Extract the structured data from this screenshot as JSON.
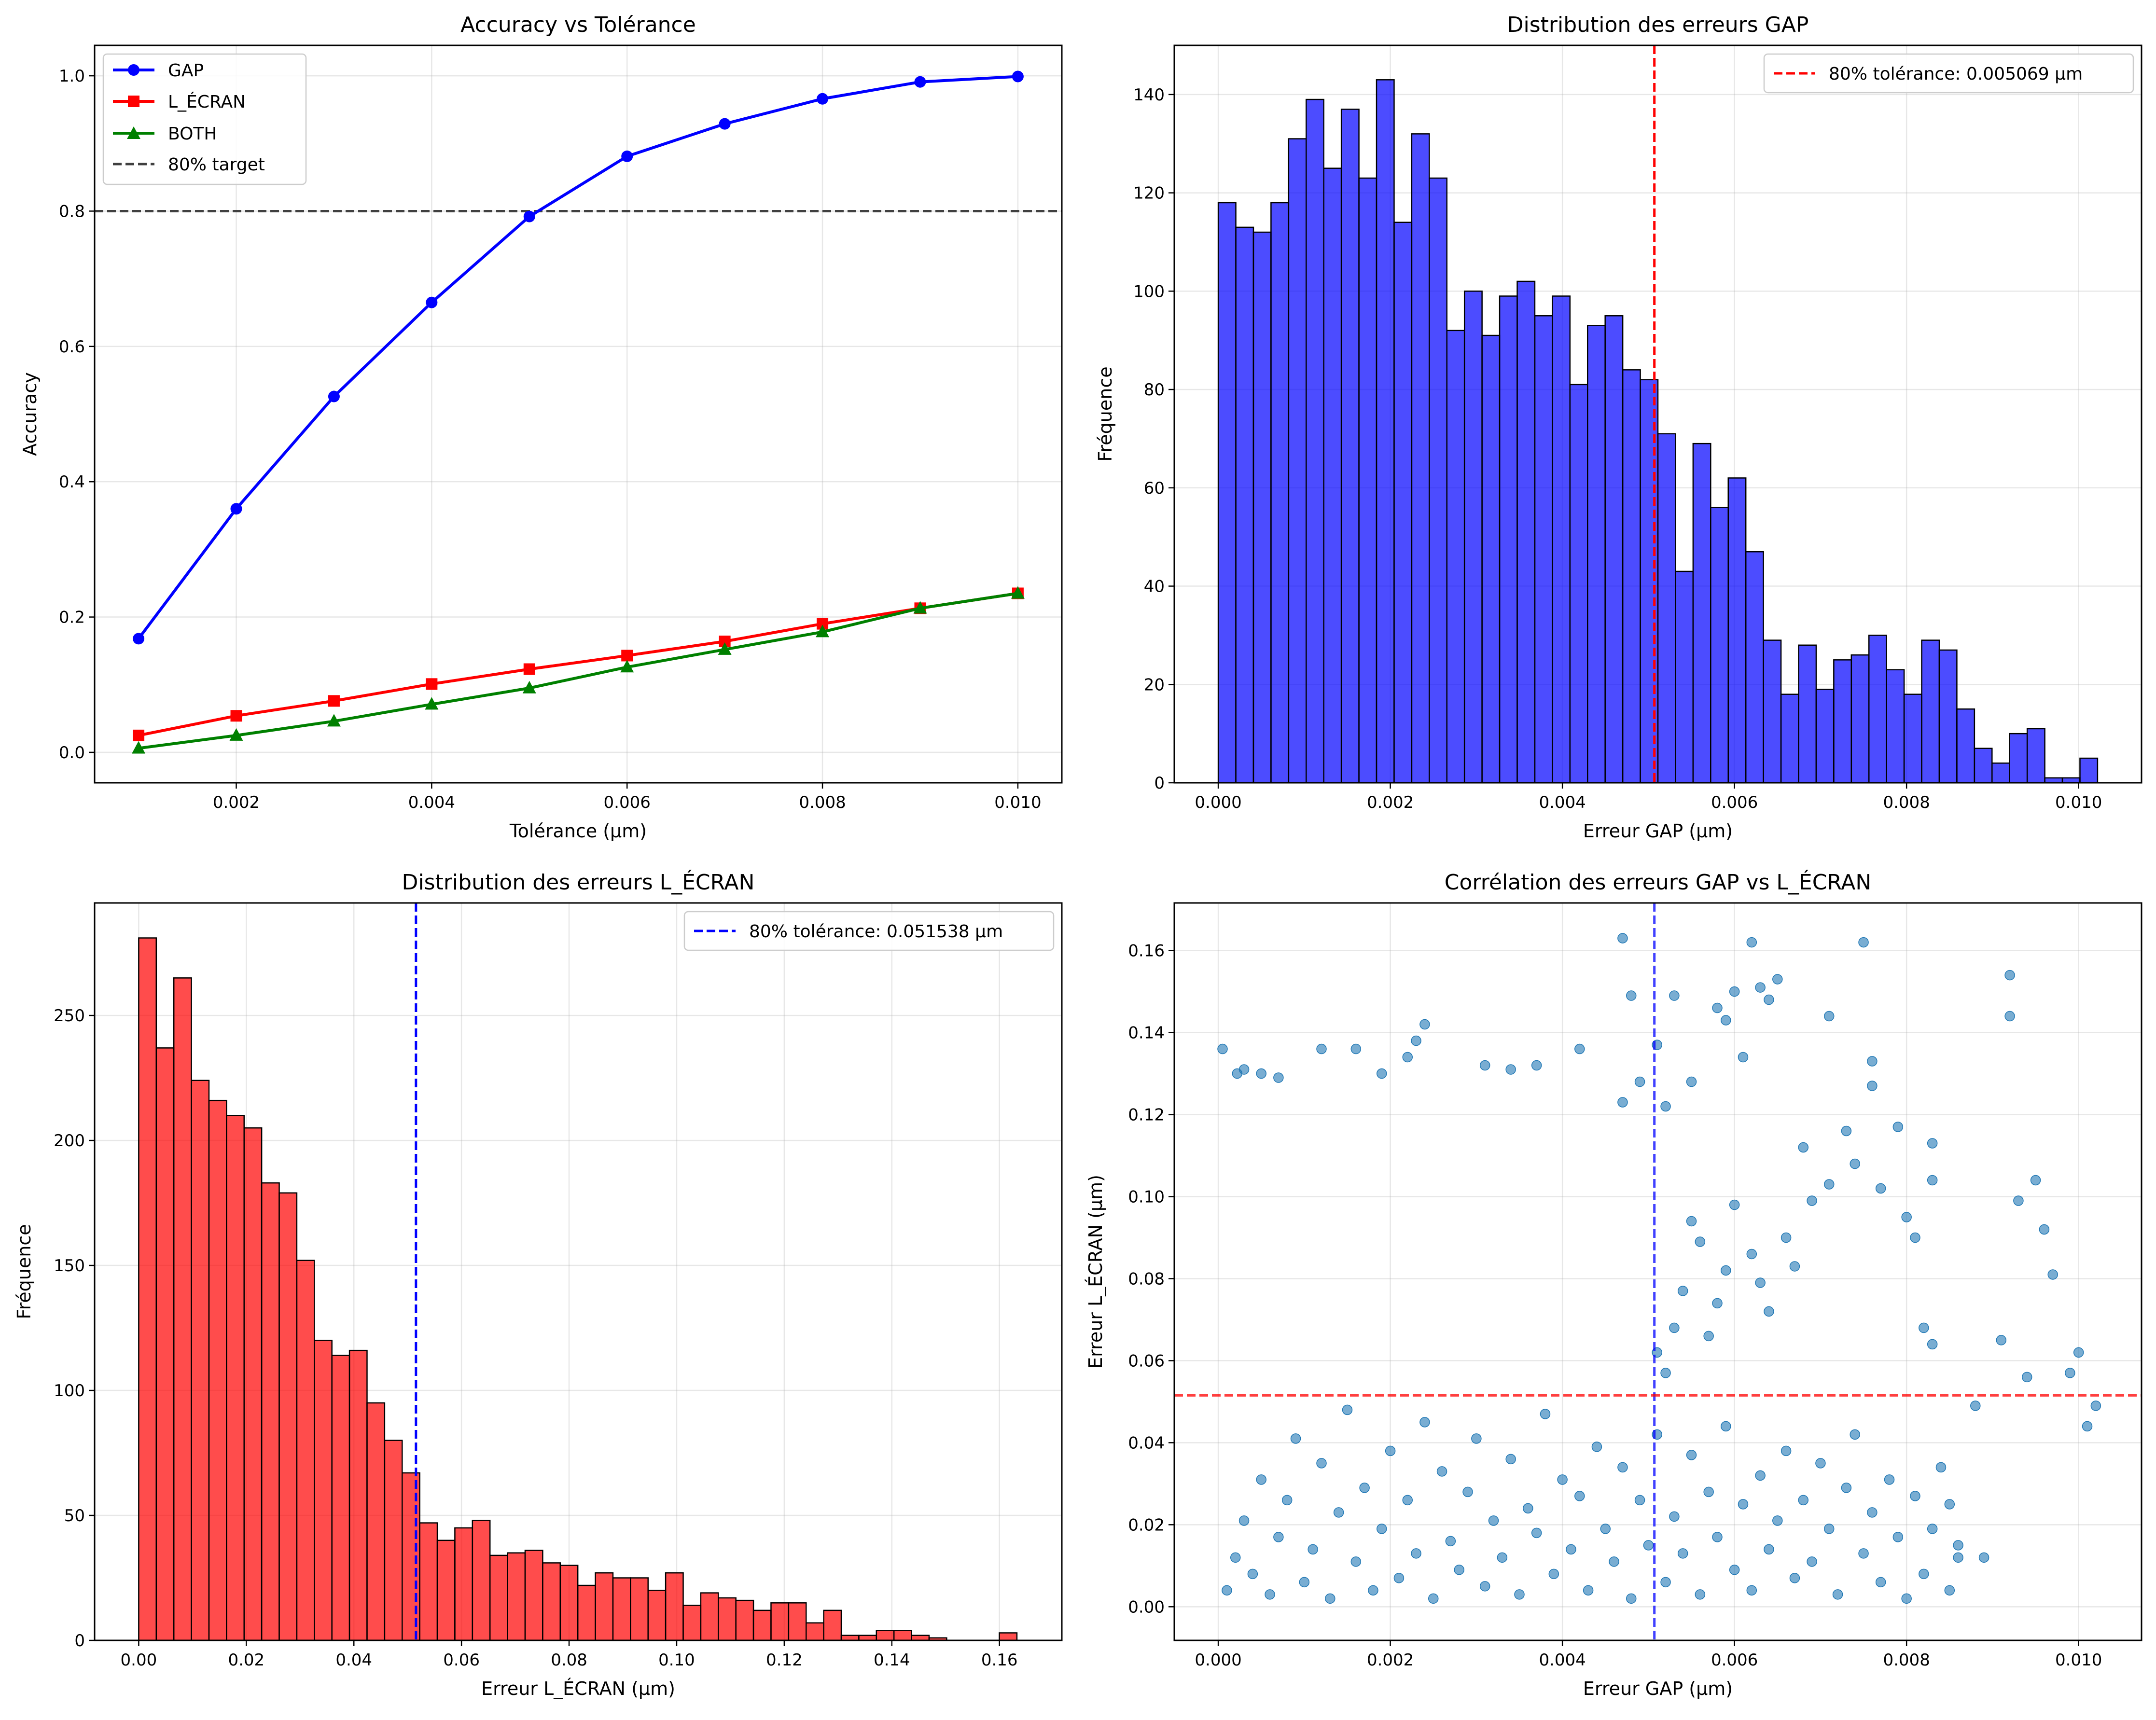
{
  "chart_data": [
    {
      "type": "line",
      "title": "Accuracy vs Tolérance",
      "xlabel": "Tolérance (µm)",
      "ylabel": "Accuracy",
      "xlim": [
        0.00055,
        0.01045
      ],
      "ylim": [
        -0.045,
        1.045
      ],
      "xticks": [
        "0.002",
        "0.004",
        "0.006",
        "0.008",
        "0.010"
      ],
      "xtick_values": [
        0.002,
        0.004,
        0.006,
        0.008,
        0.01
      ],
      "yticks": [
        "0.0",
        "0.2",
        "0.4",
        "0.6",
        "0.8",
        "1.0"
      ],
      "ytick_values": [
        0,
        0.2,
        0.4,
        0.6,
        0.8,
        1.0
      ],
      "grid": true,
      "legend_position": "top-left",
      "x": [
        0.001,
        0.002,
        0.003,
        0.004,
        0.005,
        0.006,
        0.007,
        0.008,
        0.009,
        0.01
      ],
      "series": [
        {
          "name": "GAP",
          "color": "#0000ff",
          "marker": "circle",
          "values": [
            0.168,
            0.36,
            0.526,
            0.665,
            0.792,
            0.881,
            0.929,
            0.966,
            0.991,
            0.999
          ]
        },
        {
          "name": "L_ÉCRAN",
          "color": "#ff0000",
          "marker": "square",
          "values": [
            0.025,
            0.054,
            0.076,
            0.101,
            0.123,
            0.143,
            0.164,
            0.19,
            0.213,
            0.235
          ]
        },
        {
          "name": "BOTH",
          "color": "#008000",
          "marker": "triangle",
          "values": [
            0.006,
            0.025,
            0.046,
            0.071,
            0.095,
            0.126,
            0.152,
            0.178,
            0.213,
            0.235
          ]
        }
      ],
      "reference_line": {
        "name": "80% target",
        "y": 0.8,
        "color": "#404040",
        "style": "dashed"
      }
    },
    {
      "type": "bar",
      "subtype": "histogram",
      "title": "Distribution des erreurs GAP",
      "xlabel": "Erreur GAP (µm)",
      "ylabel": "Fréquence",
      "xlim": [
        -0.000511,
        0.010731
      ],
      "ylim": [
        0,
        150
      ],
      "xticks": [
        "0.000",
        "0.002",
        "0.004",
        "0.006",
        "0.008",
        "0.010"
      ],
      "xtick_values": [
        0,
        0.002,
        0.004,
        0.006,
        0.008,
        0.01
      ],
      "yticks": [
        "0",
        "20",
        "40",
        "60",
        "80",
        "100",
        "120",
        "140"
      ],
      "ytick_values": [
        0,
        20,
        40,
        60,
        80,
        100,
        120,
        140
      ],
      "grid": true,
      "legend_position": "top-right",
      "bar_color": "#0000ff",
      "bin_start": 0,
      "bin_width": 0.0002044,
      "values": [
        118,
        113,
        112,
        118,
        131,
        139,
        125,
        137,
        123,
        143,
        114,
        132,
        123,
        92,
        100,
        91,
        99,
        102,
        95,
        99,
        81,
        93,
        95,
        84,
        82,
        71,
        43,
        69,
        56,
        62,
        47,
        29,
        18,
        28,
        19,
        25,
        26,
        30,
        23,
        18,
        29,
        27,
        15,
        7,
        4,
        10,
        11,
        1,
        1,
        5
      ],
      "reference_line": {
        "name": "80% tolérance: 0.005069 µm",
        "x": 0.005069,
        "color": "#ff0000",
        "style": "dashed"
      }
    },
    {
      "type": "bar",
      "subtype": "histogram",
      "title": "Distribution des erreurs L_ÉCRAN",
      "xlabel": "Erreur L_ÉCRAN (µm)",
      "ylabel": "Fréquence",
      "xlim": [
        -0.0082,
        0.1716
      ],
      "ylim": [
        0,
        295
      ],
      "xticks": [
        "0.00",
        "0.02",
        "0.04",
        "0.06",
        "0.08",
        "0.10",
        "0.12",
        "0.14",
        "0.16"
      ],
      "xtick_values": [
        0,
        0.02,
        0.04,
        0.06,
        0.08,
        0.1,
        0.12,
        0.14,
        0.16
      ],
      "yticks": [
        "0",
        "50",
        "100",
        "150",
        "200",
        "250"
      ],
      "ytick_values": [
        0,
        50,
        100,
        150,
        200,
        250
      ],
      "grid": true,
      "legend_position": "top-right",
      "bar_color": "#ff0000",
      "bin_start": 0,
      "bin_width": 0.003265,
      "values": [
        281,
        237,
        265,
        224,
        216,
        210,
        205,
        183,
        179,
        152,
        120,
        114,
        116,
        95,
        80,
        67,
        47,
        40,
        45,
        48,
        34,
        35,
        36,
        31,
        30,
        22,
        27,
        25,
        25,
        20,
        27,
        14,
        19,
        17,
        16,
        12,
        15,
        15,
        7,
        12,
        2,
        2,
        4,
        4,
        2,
        1,
        0,
        0,
        0,
        3
      ],
      "reference_line": {
        "name": "80% tolérance: 0.051538 µm",
        "x": 0.051538,
        "color": "#0000ff",
        "style": "dashed"
      }
    },
    {
      "type": "scatter",
      "title": "Corrélation des erreurs GAP vs L_ÉCRAN",
      "xlabel": "Erreur GAP (µm)",
      "ylabel": "Erreur L_ÉCRAN (µm)",
      "xlim": [
        -0.000511,
        0.010731
      ],
      "ylim": [
        -0.0082,
        0.1716
      ],
      "xticks": [
        "0.000",
        "0.002",
        "0.004",
        "0.006",
        "0.008",
        "0.010"
      ],
      "xtick_values": [
        0,
        0.002,
        0.004,
        0.006,
        0.008,
        0.01
      ],
      "yticks": [
        "0.00",
        "0.02",
        "0.04",
        "0.06",
        "0.08",
        "0.10",
        "0.12",
        "0.14",
        "0.16"
      ],
      "ytick_values": [
        0,
        0.02,
        0.04,
        0.06,
        0.08,
        0.1,
        0.12,
        0.14,
        0.16
      ],
      "grid": true,
      "point_color": "#1f77b4",
      "points": [
        [
          5e-05,
          0.136
        ],
        [
          0.00022,
          0.13
        ],
        [
          0.0003,
          0.131
        ],
        [
          0.0005,
          0.13
        ],
        [
          0.0007,
          0.129
        ],
        [
          0.0012,
          0.136
        ],
        [
          0.0016,
          0.136
        ],
        [
          0.0019,
          0.13
        ],
        [
          0.0022,
          0.134
        ],
        [
          0.0023,
          0.138
        ],
        [
          0.0024,
          0.142
        ],
        [
          0.0031,
          0.132
        ],
        [
          0.0034,
          0.131
        ],
        [
          0.0037,
          0.132
        ],
        [
          0.0042,
          0.136
        ],
        [
          0.0047,
          0.123
        ],
        [
          0.0049,
          0.128
        ],
        [
          0.0048,
          0.149
        ],
        [
          0.0047,
          0.163
        ],
        [
          0.0051,
          0.137
        ],
        [
          0.0052,
          0.122
        ],
        [
          0.0053,
          0.149
        ],
        [
          0.0055,
          0.128
        ],
        [
          0.0058,
          0.146
        ],
        [
          0.0059,
          0.143
        ],
        [
          0.006,
          0.15
        ],
        [
          0.0061,
          0.134
        ],
        [
          0.0062,
          0.162
        ],
        [
          0.0063,
          0.151
        ],
        [
          0.0064,
          0.148
        ],
        [
          0.0065,
          0.153
        ],
        [
          0.0071,
          0.144
        ],
        [
          0.0075,
          0.162
        ],
        [
          0.0076,
          0.133
        ],
        [
          0.0076,
          0.127
        ],
        [
          0.0079,
          0.117
        ],
        [
          0.0083,
          0.113
        ],
        [
          0.0083,
          0.104
        ],
        [
          0.0092,
          0.154
        ],
        [
          0.0092,
          0.144
        ],
        [
          0.0093,
          0.099
        ],
        [
          0.0094,
          0.056
        ],
        [
          0.0095,
          0.104
        ],
        [
          0.0096,
          0.092
        ],
        [
          0.0097,
          0.081
        ],
        [
          0.0099,
          0.057
        ],
        [
          0.01,
          0.062
        ],
        [
          0.0101,
          0.044
        ],
        [
          0.0102,
          0.049
        ],
        [
          0.0091,
          0.065
        ],
        [
          0.0088,
          0.049
        ],
        [
          0.0089,
          0.012
        ],
        [
          0.0086,
          0.015
        ],
        [
          0.0085,
          0.025
        ],
        [
          0.0082,
          0.068
        ],
        [
          0.0083,
          0.064
        ],
        [
          0.0081,
          0.09
        ],
        [
          0.008,
          0.095
        ],
        [
          0.0077,
          0.102
        ],
        [
          0.0074,
          0.108
        ],
        [
          0.0073,
          0.116
        ],
        [
          0.0071,
          0.103
        ],
        [
          0.0069,
          0.099
        ],
        [
          0.0068,
          0.112
        ],
        [
          0.0067,
          0.083
        ],
        [
          0.0066,
          0.09
        ],
        [
          0.0064,
          0.072
        ],
        [
          0.0063,
          0.079
        ],
        [
          0.0062,
          0.086
        ],
        [
          0.006,
          0.098
        ],
        [
          0.0059,
          0.082
        ],
        [
          0.0058,
          0.074
        ],
        [
          0.0057,
          0.066
        ],
        [
          0.0056,
          0.089
        ],
        [
          0.0055,
          0.094
        ],
        [
          0.0054,
          0.077
        ],
        [
          0.0053,
          0.068
        ],
        [
          0.0052,
          0.057
        ],
        [
          0.0051,
          0.062
        ],
        [
          0.0001,
          0.004
        ],
        [
          0.0002,
          0.012
        ],
        [
          0.0003,
          0.021
        ],
        [
          0.0004,
          0.008
        ],
        [
          0.0005,
          0.031
        ],
        [
          0.0006,
          0.003
        ],
        [
          0.0007,
          0.017
        ],
        [
          0.0008,
          0.026
        ],
        [
          0.0009,
          0.041
        ],
        [
          0.001,
          0.006
        ],
        [
          0.0011,
          0.014
        ],
        [
          0.0012,
          0.035
        ],
        [
          0.0013,
          0.002
        ],
        [
          0.0014,
          0.023
        ],
        [
          0.0015,
          0.048
        ],
        [
          0.0016,
          0.011
        ],
        [
          0.0017,
          0.029
        ],
        [
          0.0018,
          0.004
        ],
        [
          0.0019,
          0.019
        ],
        [
          0.002,
          0.038
        ],
        [
          0.0021,
          0.007
        ],
        [
          0.0022,
          0.026
        ],
        [
          0.0023,
          0.013
        ],
        [
          0.0024,
          0.045
        ],
        [
          0.0025,
          0.002
        ],
        [
          0.0026,
          0.033
        ],
        [
          0.0027,
          0.016
        ],
        [
          0.0028,
          0.009
        ],
        [
          0.0029,
          0.028
        ],
        [
          0.003,
          0.041
        ],
        [
          0.0031,
          0.005
        ],
        [
          0.0032,
          0.021
        ],
        [
          0.0033,
          0.012
        ],
        [
          0.0034,
          0.036
        ],
        [
          0.0035,
          0.003
        ],
        [
          0.0036,
          0.024
        ],
        [
          0.0037,
          0.018
        ],
        [
          0.0038,
          0.047
        ],
        [
          0.0039,
          0.008
        ],
        [
          0.004,
          0.031
        ],
        [
          0.0041,
          0.014
        ],
        [
          0.0042,
          0.027
        ],
        [
          0.0043,
          0.004
        ],
        [
          0.0044,
          0.039
        ],
        [
          0.0045,
          0.019
        ],
        [
          0.0046,
          0.011
        ],
        [
          0.0047,
          0.034
        ],
        [
          0.0048,
          0.002
        ],
        [
          0.0049,
          0.026
        ],
        [
          0.005,
          0.015
        ],
        [
          0.0051,
          0.042
        ],
        [
          0.0052,
          0.006
        ],
        [
          0.0053,
          0.022
        ],
        [
          0.0054,
          0.013
        ],
        [
          0.0055,
          0.037
        ],
        [
          0.0056,
          0.003
        ],
        [
          0.0057,
          0.028
        ],
        [
          0.0058,
          0.017
        ],
        [
          0.0059,
          0.044
        ],
        [
          0.006,
          0.009
        ],
        [
          0.0061,
          0.025
        ],
        [
          0.0062,
          0.004
        ],
        [
          0.0063,
          0.032
        ],
        [
          0.0064,
          0.014
        ],
        [
          0.0065,
          0.021
        ],
        [
          0.0066,
          0.038
        ],
        [
          0.0067,
          0.007
        ],
        [
          0.0068,
          0.026
        ],
        [
          0.0069,
          0.011
        ],
        [
          0.007,
          0.035
        ],
        [
          0.0071,
          0.019
        ],
        [
          0.0072,
          0.003
        ],
        [
          0.0073,
          0.029
        ],
        [
          0.0074,
          0.042
        ],
        [
          0.0075,
          0.013
        ],
        [
          0.0076,
          0.023
        ],
        [
          0.0077,
          0.006
        ],
        [
          0.0078,
          0.031
        ],
        [
          0.0079,
          0.017
        ],
        [
          0.008,
          0.002
        ],
        [
          0.0081,
          0.027
        ],
        [
          0.0082,
          0.008
        ],
        [
          0.0083,
          0.019
        ],
        [
          0.0084,
          0.034
        ],
        [
          0.0085,
          0.004
        ],
        [
          0.0086,
          0.012
        ]
      ],
      "reference_lines": [
        {
          "axis": "x",
          "value": 0.005069,
          "color": "#0000ff",
          "style": "dashed"
        },
        {
          "axis": "y",
          "value": 0.051538,
          "color": "#ff0000",
          "style": "dashed"
        }
      ]
    }
  ]
}
